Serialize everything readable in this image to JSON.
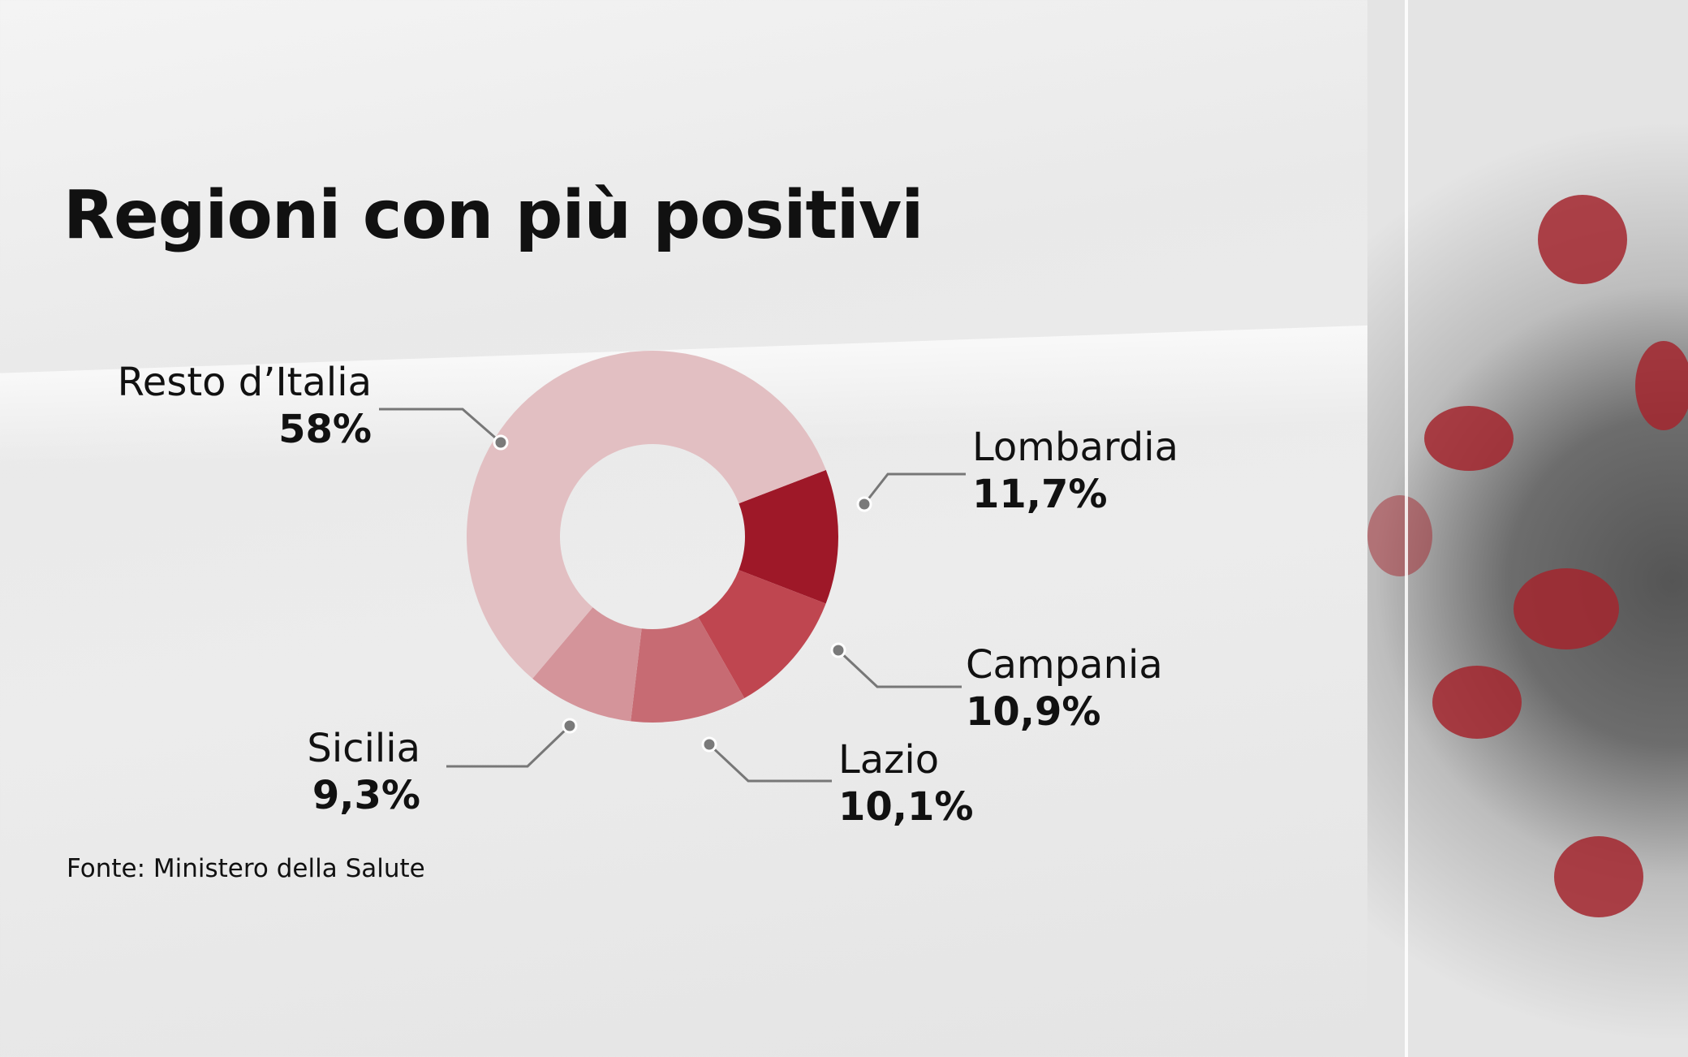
{
  "chart_data": {
    "type": "pie",
    "donut": true,
    "title": "Regioni con più positivi",
    "categories": [
      "Lombardia",
      "Campania",
      "Lazio",
      "Sicilia",
      "Resto d’Italia"
    ],
    "values": [
      11.7,
      10.9,
      10.1,
      9.3,
      58
    ],
    "value_labels": [
      "11,7%",
      "10,9%",
      "10,1%",
      "9,3%",
      "58%"
    ],
    "colors": [
      "#9e1828",
      "#bf4650",
      "#c76b73",
      "#d4949a",
      "#e2bfc2"
    ],
    "source": "Fonte: Ministero della Salute"
  }
}
